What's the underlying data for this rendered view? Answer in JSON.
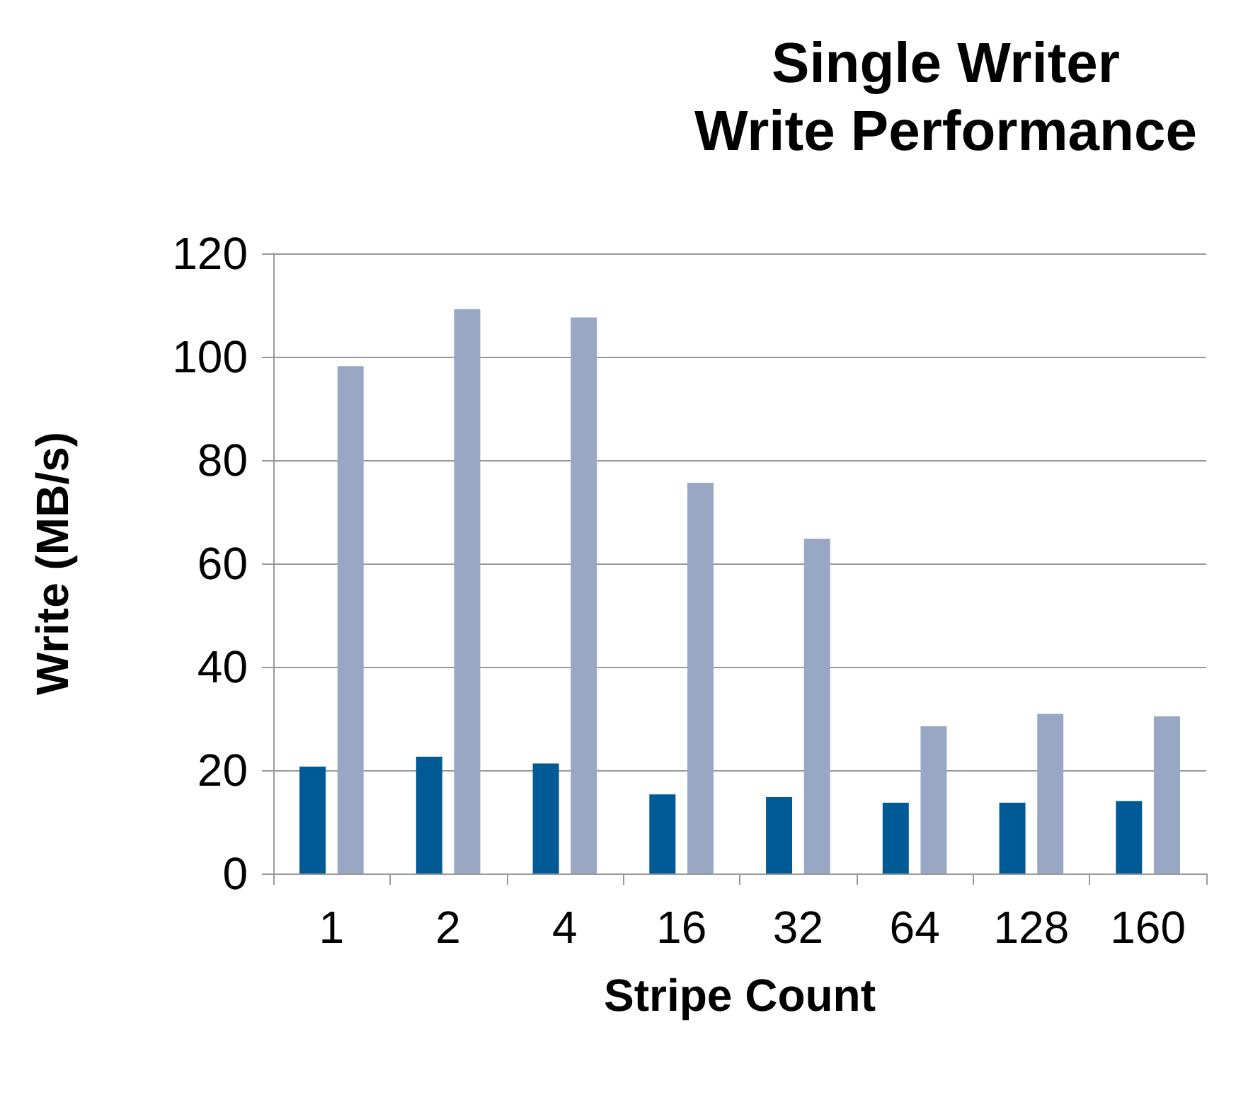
{
  "chart_data": {
    "type": "bar",
    "title": "Single Writer\nWrite Performance",
    "xlabel": "Stripe Count",
    "ylabel": "Write (MB/s)",
    "categories": [
      "1",
      "2",
      "4",
      "16",
      "32",
      "64",
      "128",
      "160"
    ],
    "series": [
      {
        "color": "#005a96",
        "values": [
          20.7,
          22.6,
          21.3,
          15.3,
          14.8,
          13.7,
          13.7,
          14
        ]
      },
      {
        "color": "#98a8c4",
        "values": [
          98.2,
          109.2,
          107.6,
          75.6,
          64.8,
          28.5,
          30.9,
          30.4
        ]
      }
    ],
    "ylim": [
      0,
      120
    ],
    "yticks": [
      0,
      20,
      40,
      60,
      80,
      100,
      120
    ],
    "grid": "y"
  }
}
